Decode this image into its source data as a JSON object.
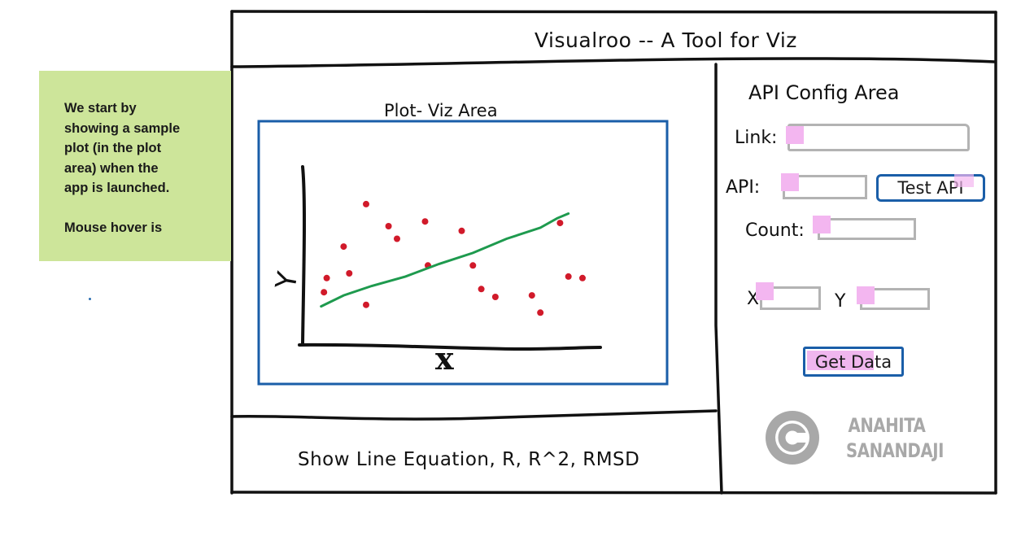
{
  "note": {
    "paragraph1": "We start by\nshowing a sample\nplot (in the plot\narea) when the\napp is launched.",
    "paragraph2": "Mouse hover is"
  },
  "header": {
    "title": "Visualroo -- A Tool for Viz"
  },
  "plot": {
    "title": "Plot- Viz Area",
    "x_axis_label": "x",
    "y_axis_label": "Y"
  },
  "footer": {
    "stats_text": "Show Line Equation, R, R^2, RMSD"
  },
  "config": {
    "title": "API Config Area",
    "link_label": "Link:",
    "link_value": "",
    "api_label": "API:",
    "api_value": "",
    "test_button_label": "Test API",
    "count_label": "Count:",
    "count_value": "",
    "x_label": "X",
    "x_value": "",
    "y_label": "Y",
    "y_value": "",
    "get_data_button_label": "Get Data"
  },
  "watermark": {
    "icon": "copyright-icon",
    "text": "ANAHITA\nSANANDAJI"
  },
  "colors": {
    "note_bg": "#cde59a",
    "accent_blue": "#1a5ea8",
    "scatter_red": "#d11a2a",
    "trend_green": "#1e9a4e",
    "highlight_pink": "#f3b6f0"
  },
  "chart_data": {
    "type": "scatter",
    "xlabel": "x",
    "ylabel": "Y",
    "points": [
      {
        "x": 1.4,
        "y": 6.2
      },
      {
        "x": 2.2,
        "y": 8.9
      },
      {
        "x": 1.6,
        "y": 4.5
      },
      {
        "x": 0.8,
        "y": 4.2
      },
      {
        "x": 0.7,
        "y": 3.3
      },
      {
        "x": 3.0,
        "y": 7.5
      },
      {
        "x": 3.3,
        "y": 6.7
      },
      {
        "x": 4.3,
        "y": 7.8
      },
      {
        "x": 4.4,
        "y": 5.0
      },
      {
        "x": 2.2,
        "y": 2.5
      },
      {
        "x": 5.6,
        "y": 7.2
      },
      {
        "x": 6.0,
        "y": 5.0
      },
      {
        "x": 6.3,
        "y": 3.5
      },
      {
        "x": 6.8,
        "y": 3.0
      },
      {
        "x": 8.1,
        "y": 3.1
      },
      {
        "x": 8.4,
        "y": 2.0
      },
      {
        "x": 9.1,
        "y": 7.7
      },
      {
        "x": 9.4,
        "y": 4.3
      },
      {
        "x": 9.9,
        "y": 4.2
      }
    ],
    "trend_line": [
      {
        "x": 0.6,
        "y": 2.4
      },
      {
        "x": 1.4,
        "y": 3.1
      },
      {
        "x": 2.4,
        "y": 3.7
      },
      {
        "x": 3.6,
        "y": 4.3
      },
      {
        "x": 4.8,
        "y": 5.1
      },
      {
        "x": 6.0,
        "y": 5.8
      },
      {
        "x": 7.2,
        "y": 6.7
      },
      {
        "x": 8.4,
        "y": 7.4
      },
      {
        "x": 9.0,
        "y": 8.0
      },
      {
        "x": 9.4,
        "y": 8.3
      }
    ],
    "xlim": [
      0,
      11
    ],
    "ylim": [
      0,
      12
    ]
  }
}
